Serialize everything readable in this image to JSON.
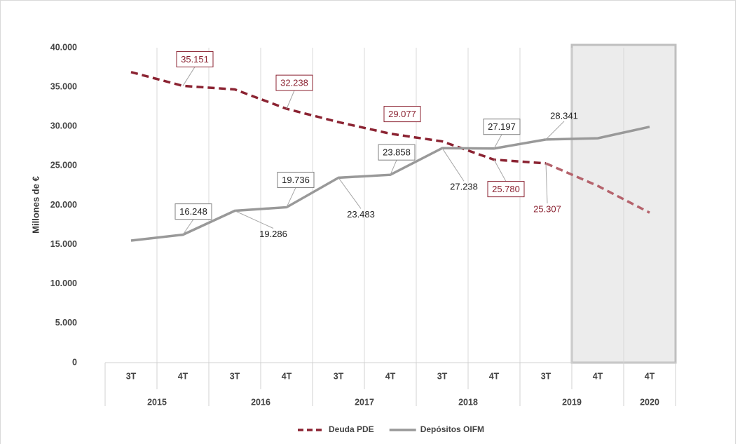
{
  "chart_data": {
    "type": "line",
    "y_label": "Millones de €",
    "categories": [
      "3T",
      "4T",
      "3T",
      "4T",
      "3T",
      "4T",
      "3T",
      "4T",
      "3T",
      "4T",
      "4T"
    ],
    "year_groups": [
      {
        "label": "2015",
        "count": 2
      },
      {
        "label": "2016",
        "count": 2
      },
      {
        "label": "2017",
        "count": 2
      },
      {
        "label": "2018",
        "count": 2
      },
      {
        "label": "2019",
        "count": 2
      },
      {
        "label": "2020",
        "count": 1
      }
    ],
    "series": [
      {
        "name": "Deuda PDE",
        "color": "#8b2332",
        "forecast_color": "#b5636c",
        "dashed": true,
        "values": [
          36900,
          35151,
          34700,
          32238,
          30550,
          29077,
          28100,
          25780,
          25307,
          22450,
          19050
        ],
        "value_labels": [
          null,
          "35.151",
          null,
          "32.238",
          null,
          "29.077",
          null,
          "25.780",
          "25.307",
          null,
          null
        ]
      },
      {
        "name": "Depósitos OIFM",
        "color": "#999999",
        "forecast_color": "#999999",
        "dashed": false,
        "values": [
          15500,
          16248,
          19286,
          19736,
          23483,
          23858,
          27238,
          27197,
          28341,
          28500,
          29950
        ],
        "value_labels": [
          null,
          "16.248",
          "19.286",
          "19.736",
          "23.483",
          "23.858",
          "27.238",
          "27.197",
          "28.341",
          null,
          null
        ]
      }
    ],
    "ylim": [
      0,
      40000
    ],
    "yticks": [
      0,
      {
        "value": 5000,
        "label": "5.000"
      },
      {
        "value": 10000,
        "label": "10.000"
      },
      {
        "value": 15000,
        "label": "15.000"
      },
      {
        "value": 20000,
        "label": "20.000"
      },
      {
        "value": 25000,
        "label": "25.000"
      },
      {
        "value": 30000,
        "label": "30.000"
      },
      {
        "value": 35000,
        "label": "35.000"
      },
      {
        "value": 40000,
        "label": "40.000"
      }
    ],
    "legend": "bottom"
  }
}
